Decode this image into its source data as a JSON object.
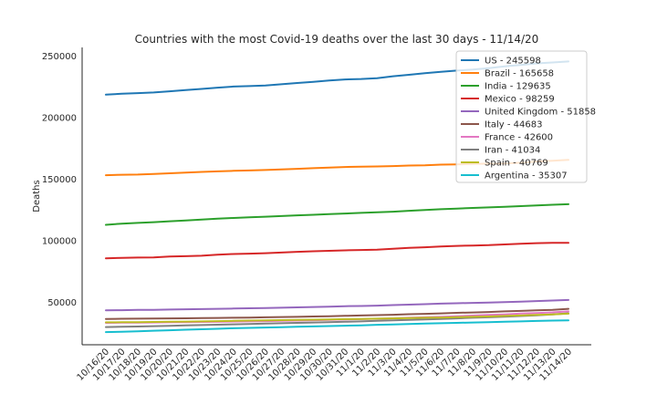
{
  "chart_data": {
    "type": "line",
    "title": "Countries with the most Covid-19 deaths over the last 30 days - 11/14/20",
    "xlabel": "",
    "ylabel": "Deaths",
    "ylim": [
      15500,
      257000
    ],
    "yticks": [
      50000,
      100000,
      150000,
      200000,
      250000
    ],
    "ytick_labels": [
      "50000",
      "100000",
      "150000",
      "200000",
      "250000"
    ],
    "grid": false,
    "legend_position": "top-right",
    "categories": [
      "10/16/20",
      "10/17/20",
      "10/18/20",
      "10/19/20",
      "10/20/20",
      "10/21/20",
      "10/22/20",
      "10/23/20",
      "10/24/20",
      "10/25/20",
      "10/26/20",
      "10/27/20",
      "10/28/20",
      "10/29/20",
      "10/30/20",
      "10/31/20",
      "11/1/20",
      "11/2/20",
      "11/3/20",
      "11/4/20",
      "11/5/20",
      "11/6/20",
      "11/7/20",
      "11/8/20",
      "11/9/20",
      "11/10/20",
      "11/11/20",
      "11/12/20",
      "11/13/20",
      "11/14/20"
    ],
    "series": [
      {
        "name": "US - 245598",
        "color": "#1f77b4",
        "values": [
          218600,
          219400,
          219900,
          220400,
          221400,
          222400,
          223300,
          224300,
          225200,
          225600,
          226100,
          227100,
          228100,
          229100,
          230100,
          231000,
          231400,
          232000,
          233600,
          234800,
          236000,
          237200,
          238200,
          239000,
          240200,
          241600,
          242800,
          244000,
          244800,
          245598
        ]
      },
      {
        "name": "Brazil - 165658",
        "color": "#ff7f0e",
        "values": [
          153200,
          153600,
          153700,
          154200,
          154800,
          155300,
          155900,
          156300,
          156800,
          157100,
          157400,
          157900,
          158400,
          158900,
          159400,
          159900,
          160100,
          160300,
          160600,
          161100,
          161200,
          161800,
          162000,
          162400,
          162600,
          162800,
          163400,
          164300,
          165000,
          165658
        ]
      },
      {
        "name": "India - 129635",
        "color": "#2ca02c",
        "values": [
          112900,
          113900,
          114500,
          115100,
          115800,
          116500,
          117200,
          117900,
          118500,
          119000,
          119500,
          120000,
          120600,
          121100,
          121600,
          122100,
          122600,
          123100,
          123600,
          124300,
          125000,
          125600,
          126100,
          126600,
          127100,
          127600,
          128100,
          128700,
          129200,
          129635
        ]
      },
      {
        "name": "Mexico - 98259",
        "color": "#d62728",
        "values": [
          85700,
          86100,
          86300,
          86500,
          87200,
          87400,
          87800,
          88700,
          89200,
          89500,
          89900,
          90400,
          91000,
          91400,
          91800,
          92200,
          92500,
          92800,
          93500,
          94200,
          94700,
          95300,
          95800,
          96100,
          96400,
          97000,
          97600,
          98000,
          98259,
          98259
        ]
      },
      {
        "name": "United Kingdom - 51858",
        "color": "#9467bd",
        "values": [
          43400,
          43600,
          43800,
          43900,
          44100,
          44300,
          44500,
          44700,
          44900,
          45100,
          45300,
          45600,
          45900,
          46200,
          46500,
          46800,
          47000,
          47300,
          47700,
          48100,
          48500,
          48900,
          49200,
          49500,
          49700,
          50100,
          50500,
          51000,
          51400,
          51858
        ]
      },
      {
        "name": "Italy - 44683",
        "color": "#8c564b",
        "values": [
          36500,
          36600,
          36700,
          36800,
          36900,
          37000,
          37100,
          37300,
          37400,
          37600,
          37800,
          38000,
          38200,
          38500,
          38700,
          39000,
          39300,
          39600,
          39900,
          40300,
          40600,
          41000,
          41400,
          41700,
          42100,
          42600,
          43000,
          43400,
          43800,
          44683
        ]
      },
      {
        "name": "France - 42600",
        "color": "#e377c2",
        "values": [
          33300,
          33400,
          33500,
          33600,
          33700,
          33800,
          34000,
          34100,
          34300,
          34500,
          34700,
          34900,
          35100,
          35400,
          35700,
          36000,
          36300,
          36600,
          37000,
          37400,
          37800,
          38200,
          38700,
          39200,
          39700,
          40200,
          40800,
          41300,
          41800,
          42600
        ]
      },
      {
        "name": "Iran - 41034",
        "color": "#7f7f7f",
        "values": [
          29900,
          30100,
          30300,
          30600,
          30900,
          31200,
          31500,
          31800,
          32100,
          32400,
          32700,
          33000,
          33300,
          33600,
          33900,
          34200,
          34500,
          34900,
          35300,
          35700,
          36100,
          36500,
          36900,
          37400,
          37800,
          38300,
          38800,
          39400,
          40100,
          41034
        ]
      },
      {
        "name": "Spain - 40769",
        "color": "#bcbd22",
        "values": [
          33700,
          33800,
          33900,
          34000,
          34200,
          34300,
          34500,
          34700,
          34900,
          35100,
          35300,
          35500,
          35700,
          35900,
          36100,
          36300,
          36500,
          36700,
          36900,
          37100,
          37400,
          37600,
          37900,
          38200,
          38500,
          38900,
          39300,
          39700,
          40200,
          40769
        ]
      },
      {
        "name": "Argentina - 35307",
        "color": "#17becf",
        "values": [
          25800,
          26100,
          26500,
          26900,
          27300,
          27700,
          28100,
          28500,
          28900,
          29200,
          29500,
          29800,
          30100,
          30400,
          30700,
          31000,
          31300,
          31700,
          32000,
          32400,
          32700,
          33000,
          33300,
          33600,
          33900,
          34200,
          34500,
          34800,
          35100,
          35307
        ]
      }
    ]
  }
}
